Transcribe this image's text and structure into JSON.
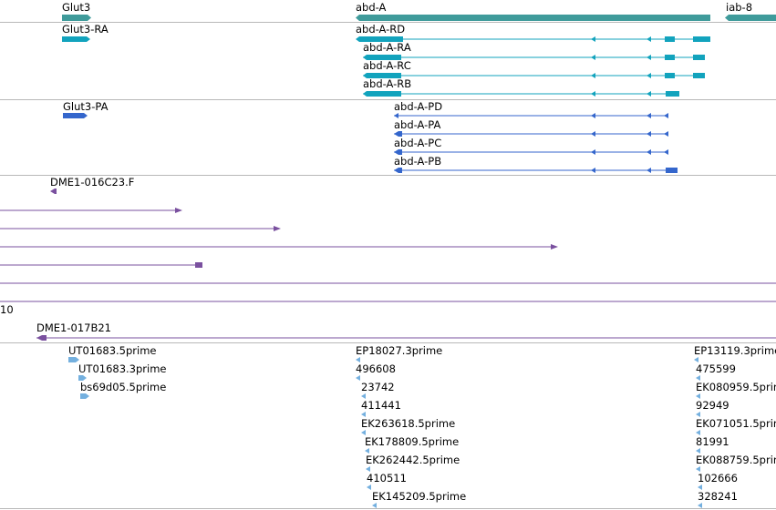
{
  "colors": {
    "gene": "#3f9b9b",
    "transcript": "#12a3bd",
    "protein": "#3466cc",
    "clone": "#7a509f",
    "est": "#74b0df",
    "divider": "#b8b8b8"
  },
  "icons": {
    "strand_left": "left-arrowhead-icon",
    "strand_right": "right-arrowhead-icon"
  },
  "genes": [
    {
      "label": "Glut3"
    },
    {
      "label": "abd-A"
    },
    {
      "label": "iab-8"
    }
  ],
  "transcripts": [
    {
      "label": "Glut3-RA"
    },
    {
      "label": "abd-A-RD"
    },
    {
      "label": "abd-A-RA"
    },
    {
      "label": "abd-A-RC"
    },
    {
      "label": "abd-A-RB"
    }
  ],
  "proteins": [
    {
      "label": "Glut3-PA"
    },
    {
      "label": "abd-A-PD"
    },
    {
      "label": "abd-A-PA"
    },
    {
      "label": "abd-A-PC"
    },
    {
      "label": "abd-A-PB"
    }
  ],
  "clones": [
    {
      "label": "DME1-016C23.F"
    },
    {
      "label": ""
    },
    {
      "label": ""
    },
    {
      "label": ""
    },
    {
      "label": ""
    },
    {
      "label": ""
    },
    {
      "label": "10"
    },
    {
      "label": "DME1-017B21"
    }
  ],
  "ests": [
    {
      "label": "UT01683.5prime"
    },
    {
      "label": "UT01683.3prime"
    },
    {
      "label": "bs69d05.5prime"
    },
    {
      "label": "EP18027.3prime"
    },
    {
      "label": "496608"
    },
    {
      "label": "23742"
    },
    {
      "label": "411441"
    },
    {
      "label": "EK263618.5prime"
    },
    {
      "label": "EK178809.5prime"
    },
    {
      "label": "EK262442.5prime"
    },
    {
      "label": "410511"
    },
    {
      "label": "EK145209.5prime"
    },
    {
      "label": "EP13119.3prime"
    },
    {
      "label": "475599"
    },
    {
      "label": "EK080959.5prime"
    },
    {
      "label": "92949"
    },
    {
      "label": "EK071051.5prime"
    },
    {
      "label": "81991"
    },
    {
      "label": "EK088759.5prime"
    },
    {
      "label": "102666"
    },
    {
      "label": "328241"
    }
  ]
}
